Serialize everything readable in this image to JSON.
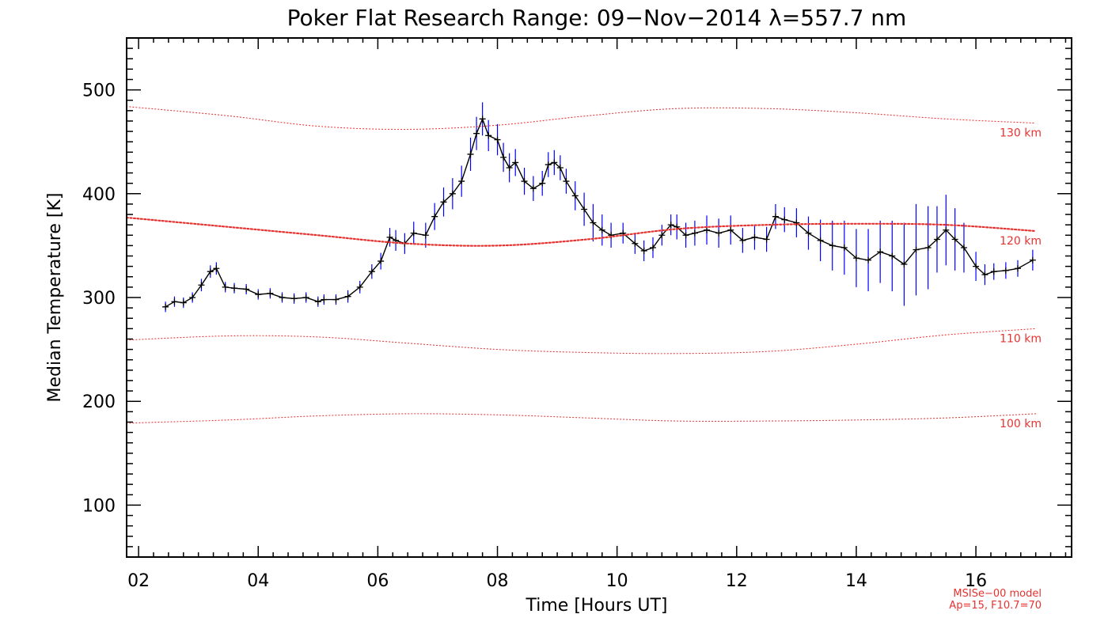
{
  "chart_data": {
    "type": "line",
    "title": "Poker Flat Research Range: 09−Nov−2014 λ=557.7 nm",
    "xlabel": "Time [Hours UT]",
    "ylabel": "Median Temperature [K]",
    "xlim": [
      1.8,
      17.6
    ],
    "ylim": [
      50,
      550
    ],
    "x_ticks": [
      2,
      4,
      6,
      8,
      10,
      12,
      14,
      16
    ],
    "x_tick_labels": [
      "02",
      "04",
      "06",
      "08",
      "10",
      "12",
      "14",
      "16"
    ],
    "y_ticks": [
      100,
      200,
      300,
      400,
      500
    ],
    "y_tick_labels": [
      "100",
      "200",
      "300",
      "400",
      "500"
    ],
    "grid": false,
    "series": [
      {
        "role": "measured",
        "color": "#000000",
        "errorbar_color": "#0000ff",
        "x": [
          2.45,
          2.6,
          2.75,
          2.9,
          3.05,
          3.2,
          3.3,
          3.45,
          3.6,
          3.8,
          4.0,
          4.2,
          4.4,
          4.6,
          4.8,
          5.0,
          5.1,
          5.3,
          5.5,
          5.7,
          5.9,
          6.05,
          6.2,
          6.3,
          6.45,
          6.6,
          6.8,
          6.95,
          7.1,
          7.25,
          7.4,
          7.55,
          7.65,
          7.75,
          7.85,
          8.0,
          8.1,
          8.2,
          8.3,
          8.45,
          8.6,
          8.75,
          8.85,
          8.95,
          9.05,
          9.15,
          9.3,
          9.45,
          9.6,
          9.75,
          9.9,
          10.1,
          10.3,
          10.45,
          10.6,
          10.75,
          10.9,
          11.0,
          11.15,
          11.3,
          11.5,
          11.7,
          11.9,
          12.1,
          12.3,
          12.5,
          12.65,
          12.8,
          13.0,
          13.2,
          13.4,
          13.6,
          13.8,
          14.0,
          14.2,
          14.4,
          14.6,
          14.8,
          15.0,
          15.2,
          15.35,
          15.5,
          15.65,
          15.8,
          16.0,
          16.15,
          16.3,
          16.5,
          16.7,
          16.95
        ],
        "y": [
          291,
          296,
          295,
          300,
          312,
          325,
          328,
          310,
          309,
          308,
          303,
          304,
          300,
          299,
          300,
          296,
          298,
          298,
          301,
          310,
          325,
          335,
          358,
          355,
          352,
          362,
          360,
          378,
          392,
          400,
          412,
          438,
          458,
          472,
          456,
          452,
          435,
          425,
          430,
          412,
          405,
          410,
          428,
          430,
          425,
          412,
          398,
          385,
          372,
          365,
          360,
          362,
          352,
          345,
          348,
          360,
          370,
          368,
          360,
          362,
          365,
          362,
          365,
          355,
          358,
          356,
          378,
          375,
          372,
          362,
          355,
          350,
          348,
          338,
          336,
          344,
          340,
          332,
          346,
          348,
          356,
          365,
          356,
          348,
          330,
          322,
          325,
          326,
          328,
          336
        ],
        "err": [
          5,
          5,
          5,
          5,
          6,
          6,
          6,
          5,
          5,
          5,
          5,
          5,
          5,
          5,
          5,
          5,
          5,
          5,
          6,
          6,
          7,
          8,
          9,
          10,
          10,
          11,
          12,
          13,
          14,
          15,
          15,
          16,
          16,
          16,
          15,
          15,
          14,
          14,
          13,
          13,
          12,
          12,
          12,
          12,
          12,
          12,
          14,
          16,
          18,
          15,
          12,
          10,
          10,
          10,
          10,
          10,
          10,
          12,
          12,
          12,
          14,
          14,
          14,
          12,
          12,
          12,
          12,
          12,
          14,
          16,
          20,
          24,
          26,
          28,
          30,
          30,
          34,
          40,
          44,
          40,
          32,
          34,
          30,
          24,
          14,
          10,
          8,
          8,
          8,
          10
        ]
      },
      {
        "role": "msis-model",
        "name": "130 km",
        "color": "#e8322f",
        "x": [
          1.8,
          3.5,
          5.0,
          6.5,
          8.0,
          9.5,
          11.0,
          12.5,
          14.0,
          15.5,
          17.0
        ],
        "y": [
          484,
          475,
          465,
          462,
          466,
          475,
          482,
          482,
          478,
          472,
          468
        ]
      },
      {
        "role": "msis-model",
        "name": "120 km",
        "color": "#e8322f",
        "thick": true,
        "x": [
          1.8,
          3.5,
          5.0,
          6.5,
          8.0,
          9.5,
          11.0,
          12.5,
          14.0,
          15.5,
          17.0
        ],
        "y": [
          377,
          368,
          360,
          352,
          350,
          356,
          366,
          370,
          371,
          370,
          364
        ]
      },
      {
        "role": "msis-model",
        "name": "110 km",
        "color": "#e8322f",
        "x": [
          1.8,
          3.5,
          5.0,
          6.5,
          8.0,
          9.5,
          11.0,
          12.5,
          14.0,
          15.5,
          17.0
        ],
        "y": [
          259,
          263,
          262,
          256,
          250,
          247,
          246,
          248,
          255,
          264,
          270
        ]
      },
      {
        "role": "msis-model",
        "name": "100 km",
        "color": "#e8322f",
        "x": [
          1.8,
          3.5,
          5.0,
          6.5,
          8.0,
          9.5,
          11.0,
          12.5,
          14.0,
          15.5,
          17.0
        ],
        "y": [
          179,
          182,
          186,
          188,
          187,
          184,
          181,
          181,
          182,
          184,
          188
        ]
      }
    ],
    "model_note": [
      "MSISe−00 model",
      "Ap=15, F10.7=70"
    ]
  }
}
